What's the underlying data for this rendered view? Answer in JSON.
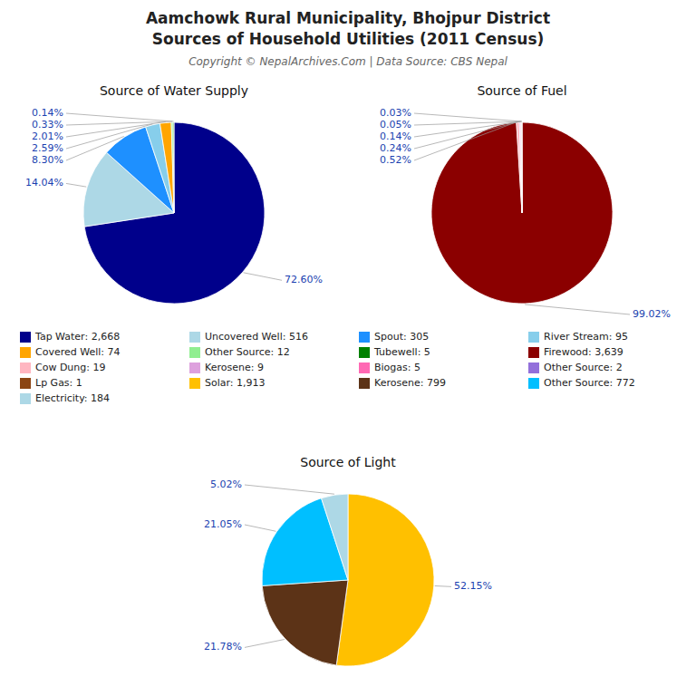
{
  "title": [
    "Aamchowk Rural Municipality, Bhojpur District",
    "Sources of Household Utilities (2011 Census)"
  ],
  "subtitle": "Copyright © NepalArchives.Com | Data Source: CBS Nepal",
  "chart_data": [
    {
      "type": "pie",
      "title": "Source of Water Supply",
      "categories": [
        "Tap Water: 2,668",
        "Uncovered Well: 516",
        "Spout: 305",
        "River Stream: 95",
        "Covered Well: 74",
        "Other Source: 12",
        "Tubewell: 5"
      ],
      "values": [
        72.6,
        14.04,
        8.3,
        2.59,
        2.01,
        0.33,
        0.14
      ],
      "value_labels": [
        "72.60%",
        "14.04%",
        "8.30%",
        "2.59%",
        "2.01%",
        "0.33%",
        "0.14%"
      ],
      "colors": [
        "#00008B",
        "#ADD8E6",
        "#1E90FF",
        "#87CEEB",
        "#FFA500",
        "#90EE90",
        "#008000"
      ],
      "data_labels": true,
      "legend": "bottom"
    },
    {
      "type": "pie",
      "title": "Source of Fuel",
      "categories": [
        "Firewood: 3,639",
        "Cow Dung: 19",
        "Kerosene: 9",
        "Biogas: 5",
        "Other Source: 2",
        "Lp Gas: 1"
      ],
      "values": [
        99.02,
        0.52,
        0.24,
        0.14,
        0.05,
        0.03
      ],
      "value_labels": [
        "99.02%",
        "0.52%",
        "0.24%",
        "0.14%",
        "0.05%",
        "0.03%"
      ],
      "colors": [
        "#8B0000",
        "#FFB6C1",
        "#DDA0DD",
        "#FF69B4",
        "#9370DB",
        "#8B4513"
      ],
      "data_labels": true,
      "legend": "bottom"
    },
    {
      "type": "pie",
      "title": "Source of Light",
      "categories": [
        "Solar: 1,913",
        "Kerosene: 799",
        "Other Source: 772",
        "Electricity: 184"
      ],
      "values": [
        52.15,
        21.78,
        21.05,
        5.02
      ],
      "value_labels": [
        "52.15%",
        "21.78%",
        "21.05%",
        "5.02%"
      ],
      "colors": [
        "#FFC000",
        "#5C3317",
        "#00BFFF",
        "#ADD8E6"
      ],
      "data_labels": true,
      "legend": "bottom"
    }
  ]
}
